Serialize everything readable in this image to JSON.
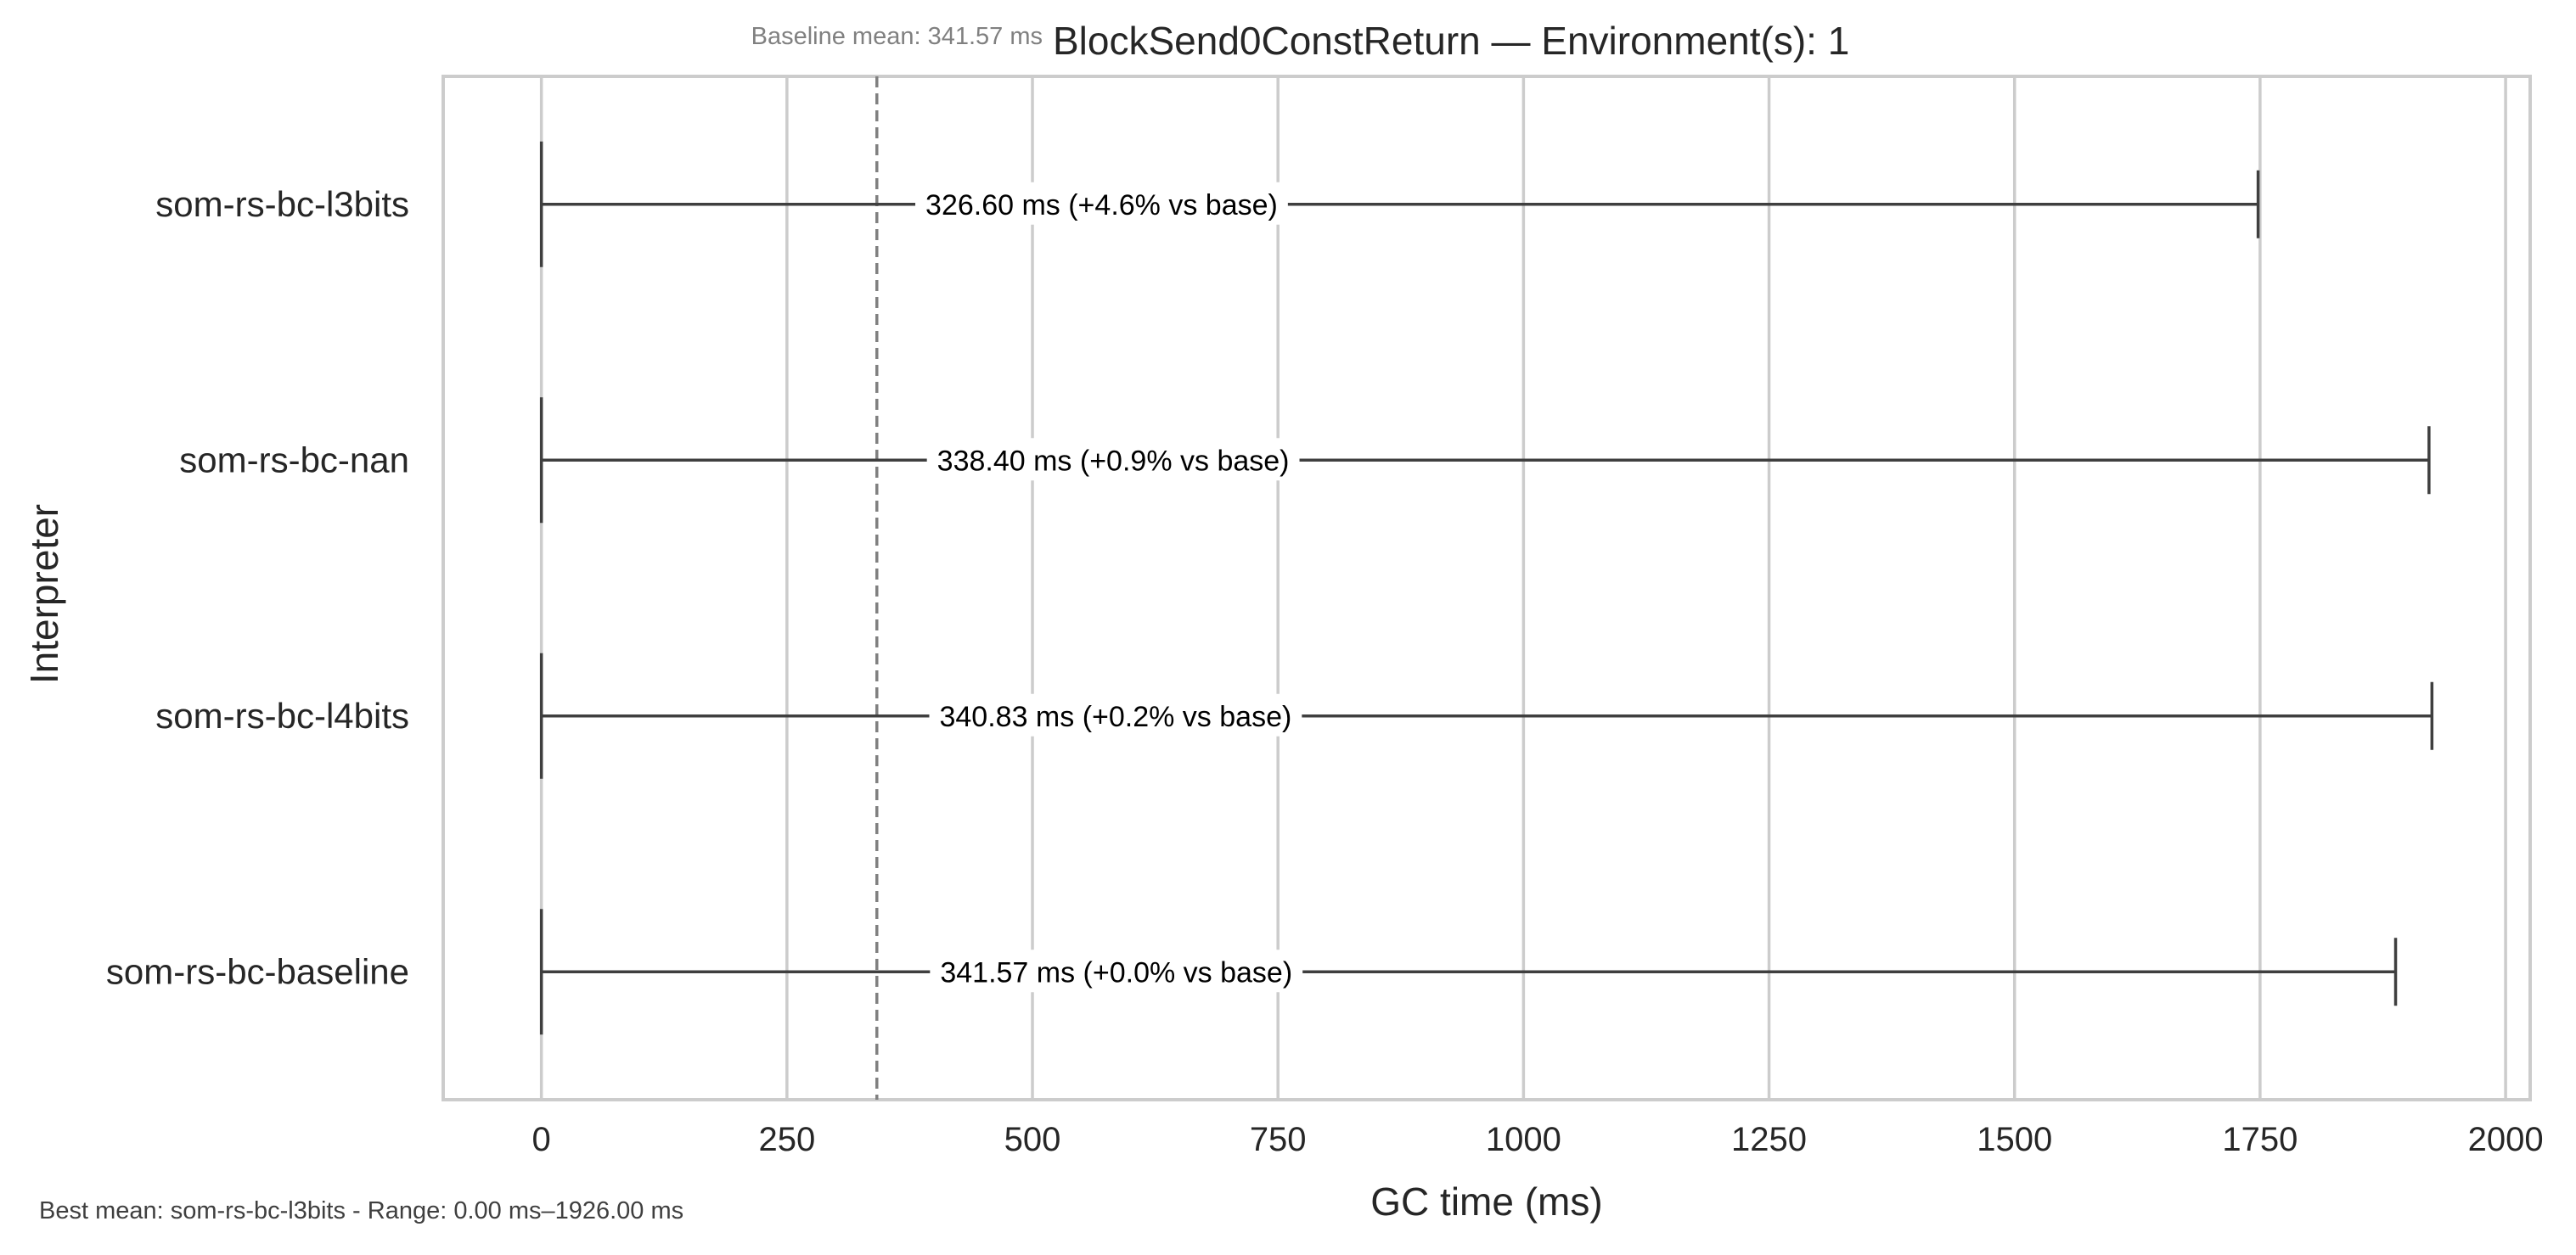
{
  "chart_data": {
    "type": "box",
    "orientation": "horizontal",
    "title": "BlockSend0ConstReturn — Environment(s): 1",
    "subtitle": "Baseline mean: 341.57 ms",
    "xlabel": "GC time (ms)",
    "ylabel": "Interpreter",
    "xlim": [
      -100,
      2025
    ],
    "xticks": [
      0,
      250,
      500,
      750,
      1000,
      1250,
      1500,
      1750,
      2000
    ],
    "grid": true,
    "baseline_mean": 341.57,
    "categories": [
      "som-rs-bc-l3bits",
      "som-rs-bc-nan",
      "som-rs-bc-l4bits",
      "som-rs-bc-baseline"
    ],
    "series": [
      {
        "category": "som-rs-bc-l3bits",
        "min": 0,
        "max": 1748,
        "mean": 326.6,
        "label": "326.60 ms  (+4.6% vs base)"
      },
      {
        "category": "som-rs-bc-nan",
        "min": 0,
        "max": 1922,
        "mean": 338.4,
        "label": "338.40 ms  (+0.9% vs base)"
      },
      {
        "category": "som-rs-bc-l4bits",
        "min": 0,
        "max": 1925,
        "mean": 340.83,
        "label": "340.83 ms  (+0.2% vs base)"
      },
      {
        "category": "som-rs-bc-baseline",
        "min": 0,
        "max": 1888,
        "mean": 341.57,
        "label": "341.57 ms  (+0.0% vs base)"
      }
    ],
    "footer": "Best mean: som-rs-bc-l3bits - Range: 0.00 ms–1926.00 ms",
    "colors": {
      "whisker": "#3f3f3f",
      "grid": "#cccccc",
      "frame": "#cccccc",
      "baseline_line": "#808080",
      "text": "#262626",
      "muted": "#808080"
    }
  }
}
